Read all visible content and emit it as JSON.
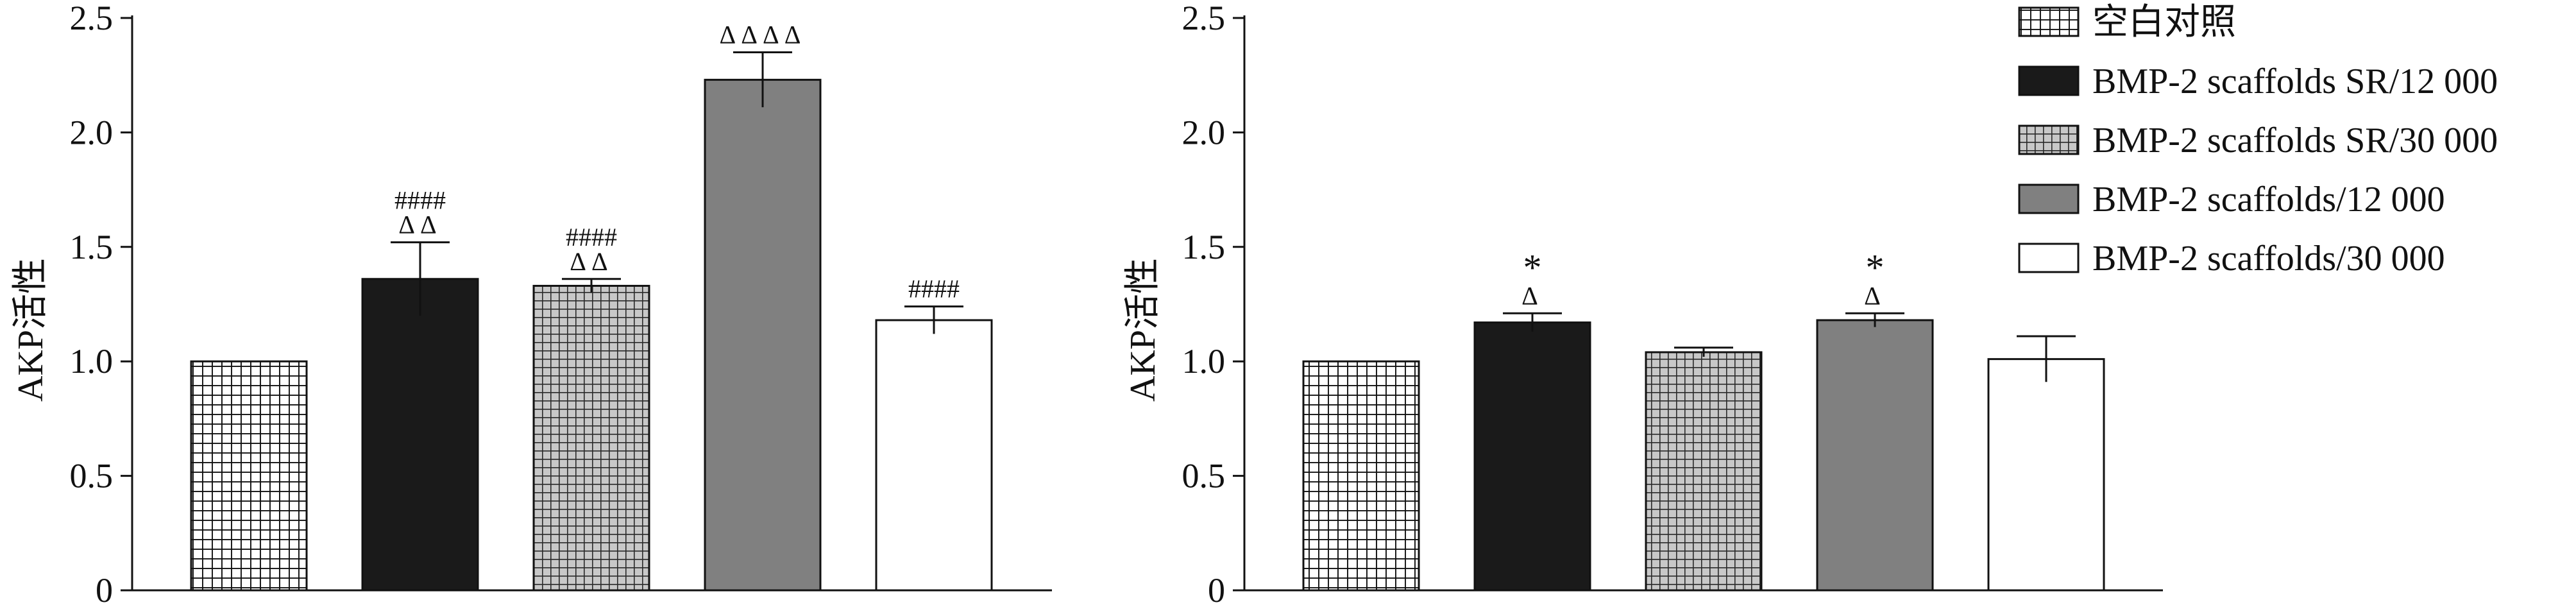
{
  "chart_data": [
    {
      "type": "bar",
      "categories": [
        "空白对照",
        "BMP-2 scaffolds SR/12 000",
        "BMP-2 scaffolds SR/30 000",
        "BMP-2 scaffolds/12 000",
        "BMP-2 scaffolds/30 000"
      ],
      "values": [
        1.0,
        1.36,
        1.33,
        2.23,
        1.18
      ],
      "errors": [
        0,
        0.16,
        0.03,
        0.12,
        0.06
      ],
      "annotations": [
        "",
        "####\nΔΔ",
        "####\nΔΔ",
        "ΔΔΔΔ",
        "####"
      ],
      "ylabel": "AKP活性",
      "ylim": [
        0,
        2.5
      ],
      "yticks": [
        "0",
        "0.5",
        "1.0",
        "1.5",
        "2.0",
        "2.5"
      ],
      "grid": false
    },
    {
      "type": "bar",
      "categories": [
        "空白对照",
        "BMP-2 scaffolds SR/12 000",
        "BMP-2 scaffolds SR/30 000",
        "BMP-2 scaffolds/12 000",
        "BMP-2 scaffolds/30 000"
      ],
      "values": [
        1.0,
        1.17,
        1.04,
        1.18,
        1.01
      ],
      "errors": [
        0,
        0.04,
        0.02,
        0.03,
        0.1
      ],
      "annotations": [
        "",
        "*\nΔ",
        "",
        "*\nΔ",
        ""
      ],
      "ylabel": "AKP活性",
      "ylim": [
        0,
        2.5
      ],
      "yticks": [
        "0",
        "0.5",
        "1.0",
        "1.5",
        "2.0",
        "2.5"
      ],
      "grid": false
    }
  ],
  "legend": {
    "position": "top-right",
    "items": [
      {
        "label": "空白对照",
        "pattern": "grid-white"
      },
      {
        "label": "BMP-2 scaffolds SR/12 000",
        "pattern": "solid-black"
      },
      {
        "label": "BMP-2 scaffolds SR/30 000",
        "pattern": "grid-gray"
      },
      {
        "label": "BMP-2 scaffolds/12 000",
        "pattern": "solid-gray"
      },
      {
        "label": "BMP-2 scaffolds/30 000",
        "pattern": "solid-white"
      }
    ]
  },
  "colors": {
    "black_bar": "#1a1a1a",
    "gray_bar": "#808080",
    "grid_gray_fill": "#c8c8c8",
    "stroke": "#111111"
  }
}
